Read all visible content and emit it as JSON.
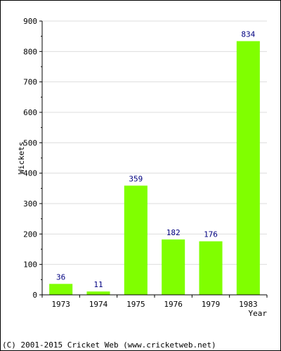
{
  "chart_data": {
    "type": "bar",
    "categories": [
      "1973",
      "1974",
      "1975",
      "1976",
      "1979",
      "1983"
    ],
    "values": [
      36,
      11,
      359,
      182,
      176,
      834
    ],
    "data_labels": [
      "36",
      "11",
      "359",
      "182",
      "176",
      "834"
    ],
    "title": "",
    "xlabel": "Year",
    "ylabel": "Wickets",
    "ylim": [
      0,
      900
    ],
    "yticks": [
      0,
      100,
      200,
      300,
      400,
      500,
      600,
      700,
      800,
      900
    ],
    "grid": true,
    "bar_color": "#80ff00",
    "grid_color": "#dddddd",
    "label_color": "#000080"
  },
  "footer": {
    "copyright": "(C) 2001-2015 Cricket Web (www.cricketweb.net)"
  }
}
